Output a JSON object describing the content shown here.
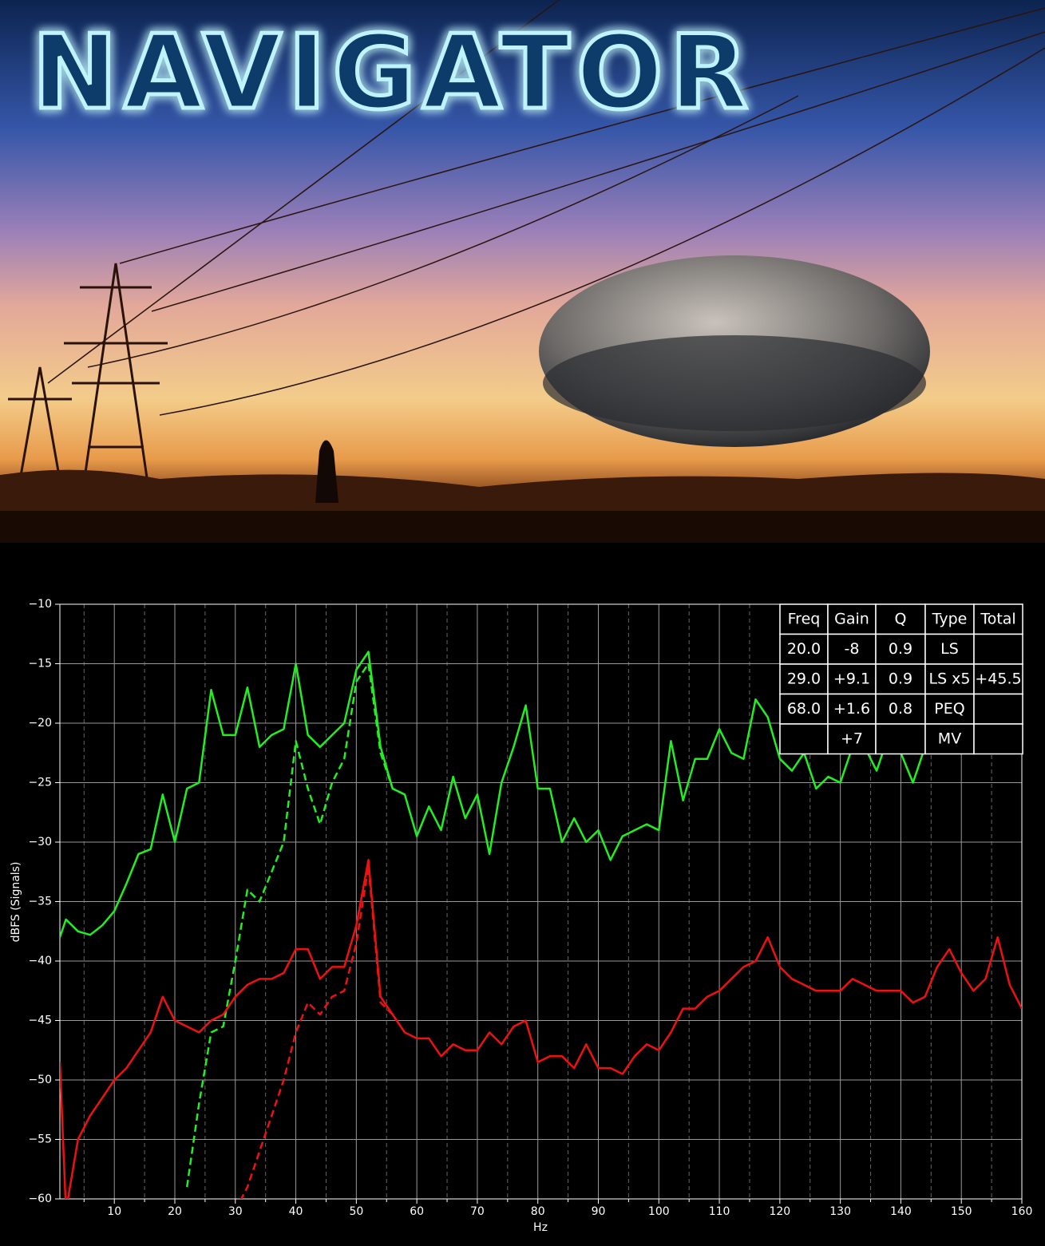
{
  "poster": {
    "title": "NAVIGATOR"
  },
  "chart_data": {
    "type": "line",
    "xlabel": "Hz",
    "ylabel": "dBFS (Signals)",
    "xlim": [
      1,
      160
    ],
    "ylim": [
      -60,
      -10
    ],
    "xticks": [
      10,
      20,
      30,
      40,
      50,
      60,
      70,
      80,
      90,
      100,
      110,
      120,
      130,
      140,
      150,
      160
    ],
    "xminorticks": [
      5,
      15,
      25,
      35,
      45,
      55,
      65,
      75,
      85,
      95,
      105,
      115,
      125,
      135,
      145,
      155
    ],
    "yticks": [
      {
        "value": -10,
        "label": "−10"
      },
      {
        "value": -15,
        "label": "−15"
      },
      {
        "value": -20,
        "label": "−20"
      },
      {
        "value": -25,
        "label": "−25"
      },
      {
        "value": -30,
        "label": "−30"
      },
      {
        "value": -35,
        "label": "−35"
      },
      {
        "value": -40,
        "label": "−40"
      },
      {
        "value": -45,
        "label": "−45"
      },
      {
        "value": -50,
        "label": "−50"
      },
      {
        "value": -55,
        "label": "−55"
      },
      {
        "value": -60,
        "label": "−60"
      }
    ],
    "grid": true,
    "x": [
      1,
      2,
      4,
      6,
      8,
      10,
      12,
      14,
      16,
      18,
      20,
      22,
      24,
      26,
      28,
      30,
      32,
      34,
      36,
      38,
      40,
      42,
      44,
      46,
      48,
      50,
      52,
      54,
      56,
      58,
      60,
      62,
      64,
      66,
      68,
      70,
      72,
      74,
      76,
      78,
      80,
      82,
      84,
      86,
      88,
      90,
      92,
      94,
      96,
      98,
      100,
      102,
      104,
      106,
      108,
      110,
      112,
      114,
      116,
      118,
      120,
      122,
      124,
      126,
      128,
      130,
      132,
      134,
      136,
      138,
      140,
      142,
      144,
      146,
      148,
      150,
      152,
      154,
      156,
      158,
      160
    ],
    "series": [
      {
        "color": "#22ee22",
        "linestyle": "solid",
        "values": [
          -38,
          -36.5,
          -37.5,
          -37.8,
          -37,
          -35.8,
          -33.5,
          -31,
          -30.6,
          -26,
          -30,
          -25.5,
          -25,
          -17.2,
          -21,
          -21,
          -17,
          -22,
          -21,
          -20.5,
          -15,
          -21,
          -22,
          -21,
          -20,
          -15.5,
          -14,
          -22,
          -25.5,
          -26,
          -29.5,
          -27,
          -29,
          -24.5,
          -28,
          -26,
          -31,
          -25,
          -22,
          -18.5,
          -25.5,
          -25.5,
          -30,
          -28,
          -30,
          -29,
          -31.5,
          -29.5,
          -29,
          -28.5,
          -29,
          -21.5,
          -26.5,
          -23,
          -23,
          -20.5,
          -22.5,
          -23,
          -18,
          -19.5,
          -23,
          -24,
          -22.5,
          -25.5,
          -24.5,
          -25,
          -22,
          -22,
          -24,
          -21,
          -22.5,
          -25,
          -22,
          -21,
          -21.5,
          -21.5,
          -22,
          -22,
          -21,
          -22.5,
          -22.5
        ]
      },
      {
        "color": "#22ee22",
        "linestyle": "dashed",
        "x": [
          22,
          24,
          26,
          28,
          30,
          32,
          34,
          36,
          38,
          40,
          42,
          44,
          46,
          48,
          50,
          52,
          54,
          56,
          58
        ],
        "values": [
          -59,
          -52,
          -46,
          -45.5,
          -40,
          -34,
          -35,
          -32.5,
          -30,
          -21.5,
          -25.5,
          -28.5,
          -25,
          -23,
          -16.5,
          -15,
          -22.5,
          -25.5,
          -26
        ]
      },
      {
        "color": "#ee1111",
        "linestyle": "solid",
        "values": [
          -48.5,
          -61,
          -55,
          -53,
          -51.5,
          -50,
          -49,
          -47.5,
          -46,
          -43,
          -45,
          -45.5,
          -46,
          -45,
          -44.5,
          -43,
          -42,
          -41.5,
          -41.5,
          -41,
          -39,
          -39,
          -41.5,
          -40.5,
          -40.5,
          -37,
          -31.5,
          -43,
          -44.5,
          -46,
          -46.5,
          -46.5,
          -48,
          -47,
          -47.5,
          -47.5,
          -46,
          -47,
          -45.5,
          -45,
          -48.5,
          -48,
          -48,
          -49,
          -47,
          -49,
          -49,
          -49.5,
          -48,
          -47,
          -47.5,
          -46,
          -44,
          -44,
          -43,
          -42.5,
          -41.5,
          -40.5,
          -40,
          -38,
          -40.5,
          -41.5,
          -42,
          -42.5,
          -42.5,
          -42.5,
          -41.5,
          -42,
          -42.5,
          -42.5,
          -42.5,
          -43.5,
          -43,
          -40.5,
          -39,
          -41,
          -42.5,
          -41.5,
          -38,
          -42,
          -44
        ]
      },
      {
        "color": "#ee1111",
        "linestyle": "dashed",
        "x": [
          30,
          32,
          34,
          36,
          38,
          40,
          42,
          44,
          46,
          48,
          50,
          52,
          54,
          56,
          58
        ],
        "values": [
          -61,
          -59,
          -56,
          -53,
          -50,
          -46,
          -43.5,
          -44.5,
          -43,
          -42.5,
          -38.5,
          -32,
          -43.5,
          -44.5,
          -46
        ]
      }
    ],
    "table": {
      "header": [
        "Freq",
        "Gain",
        "Q",
        "Type",
        "Total"
      ],
      "rows": [
        [
          "20.0",
          "-8",
          "0.9",
          "LS",
          null
        ],
        [
          "29.0",
          "+9.1",
          "0.9",
          "LS x5",
          "+45.5"
        ],
        [
          "68.0",
          "+1.6",
          "0.8",
          "PEQ",
          null
        ],
        [
          null,
          "+7",
          null,
          "MV",
          null
        ]
      ]
    }
  }
}
